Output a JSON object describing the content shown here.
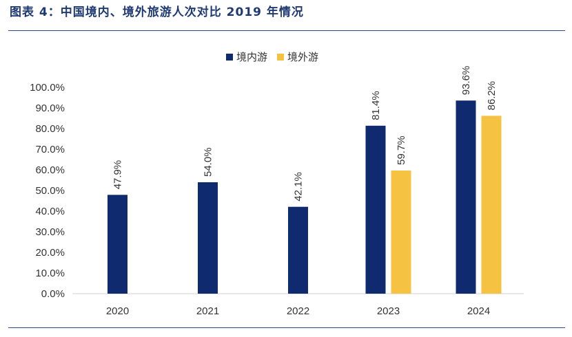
{
  "figure": {
    "title": "图表 4：中国境内、境外旅游人次对比 2019 年情况"
  },
  "chart_data": {
    "type": "bar",
    "categories": [
      "2020",
      "2021",
      "2022",
      "2023",
      "2024"
    ],
    "series": [
      {
        "name": "境内游",
        "color": "#0f2a6e",
        "values": [
          47.9,
          54.0,
          42.1,
          81.4,
          93.6
        ],
        "labels": [
          "47.9%",
          "54.0%",
          "42.1%",
          "81.4%",
          "93.6%"
        ]
      },
      {
        "name": "境外游",
        "color": "#f5c242",
        "values": [
          null,
          null,
          null,
          59.7,
          86.2
        ],
        "labels": [
          "",
          "",
          "",
          "59.7%",
          "86.2%"
        ]
      }
    ],
    "yticks": [
      "0.0%",
      "10.0%",
      "20.0%",
      "30.0%",
      "40.0%",
      "50.0%",
      "60.0%",
      "70.0%",
      "80.0%",
      "90.0%",
      "100.0%"
    ],
    "ylim": [
      0,
      100
    ],
    "grid": false,
    "legend_position": "top-center"
  }
}
